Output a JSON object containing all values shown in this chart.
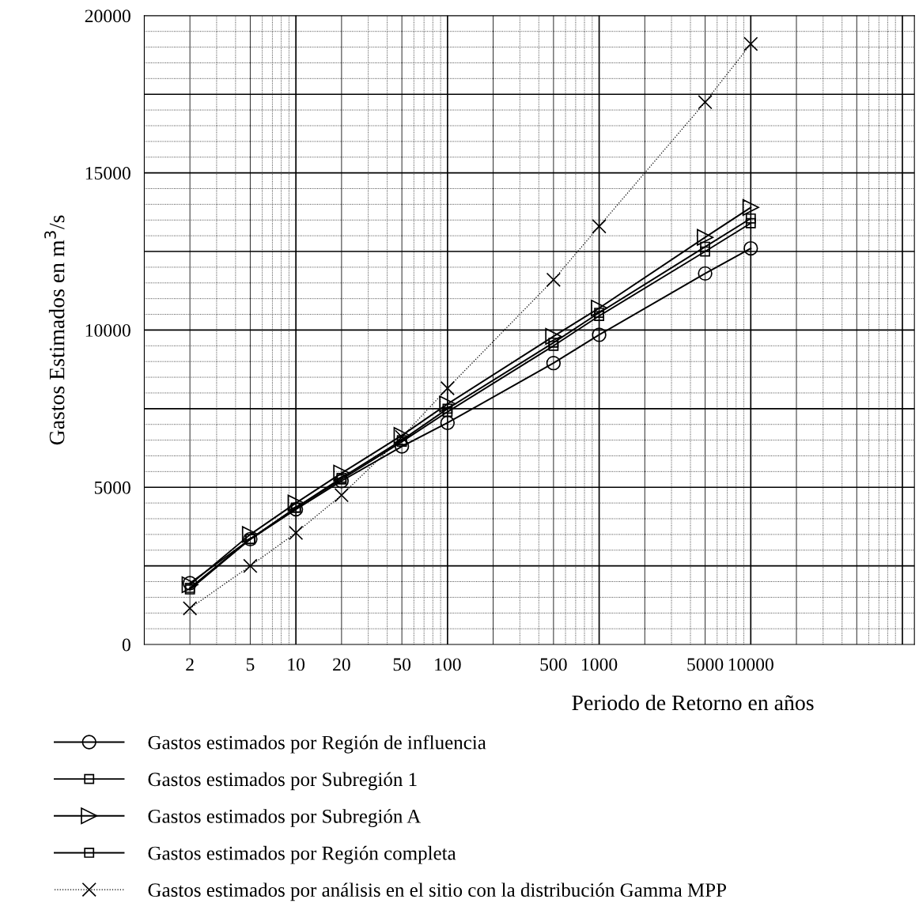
{
  "chart_data": {
    "type": "line",
    "xlabel": "Periodo de Retorno en años",
    "ylabel": "Gastos Estimados en m$^{3}$/s",
    "x": [
      2,
      5,
      10,
      20,
      50,
      100,
      500,
      1000,
      5000,
      10000
    ],
    "log": "x",
    "xlim": [
      1,
      120000
    ],
    "xticks": [
      2,
      5,
      10,
      20,
      50,
      100,
      500,
      1000,
      5000,
      10000
    ],
    "ylim": [
      0,
      20000
    ],
    "yticks": [
      0,
      5000,
      10000,
      15000,
      20000
    ],
    "grid": true,
    "legend": "bottom",
    "series": [
      {
        "name": "Gastos estimados por Región de influencia",
        "color": "#000000",
        "marker": "circle",
        "line_style": "solid",
        "values": [
          1950,
          3350,
          4300,
          5200,
          6300,
          7050,
          8950,
          9850,
          11800,
          12600
        ]
      },
      {
        "name": "Gastos estimados por Subregión 1",
        "color": "#000000",
        "marker": "square",
        "line_style": "solid",
        "values": [
          1800,
          3350,
          4350,
          5250,
          6450,
          7400,
          9500,
          10450,
          12500,
          13400
        ]
      },
      {
        "name": "Gastos estimados por Subregión A",
        "color": "#000000",
        "marker": "triangle",
        "line_style": "solid",
        "values": [
          1900,
          3500,
          4500,
          5450,
          6650,
          7650,
          9800,
          10700,
          12950,
          13900
        ]
      },
      {
        "name": "Gastos estimados por Región completa",
        "color": "#000000",
        "marker": "square",
        "line_style": "solid",
        "values": [
          1750,
          3350,
          4350,
          5300,
          6500,
          7500,
          9600,
          10550,
          12650,
          13550
        ]
      },
      {
        "name": "Gastos estimados por análisis en el sitio con la distribución Gamma MPP",
        "color": "#000000",
        "marker": "cross",
        "line_style": "dotted",
        "values": [
          1150,
          2500,
          3550,
          4750,
          6600,
          8150,
          11600,
          13300,
          17250,
          19100
        ]
      }
    ]
  }
}
